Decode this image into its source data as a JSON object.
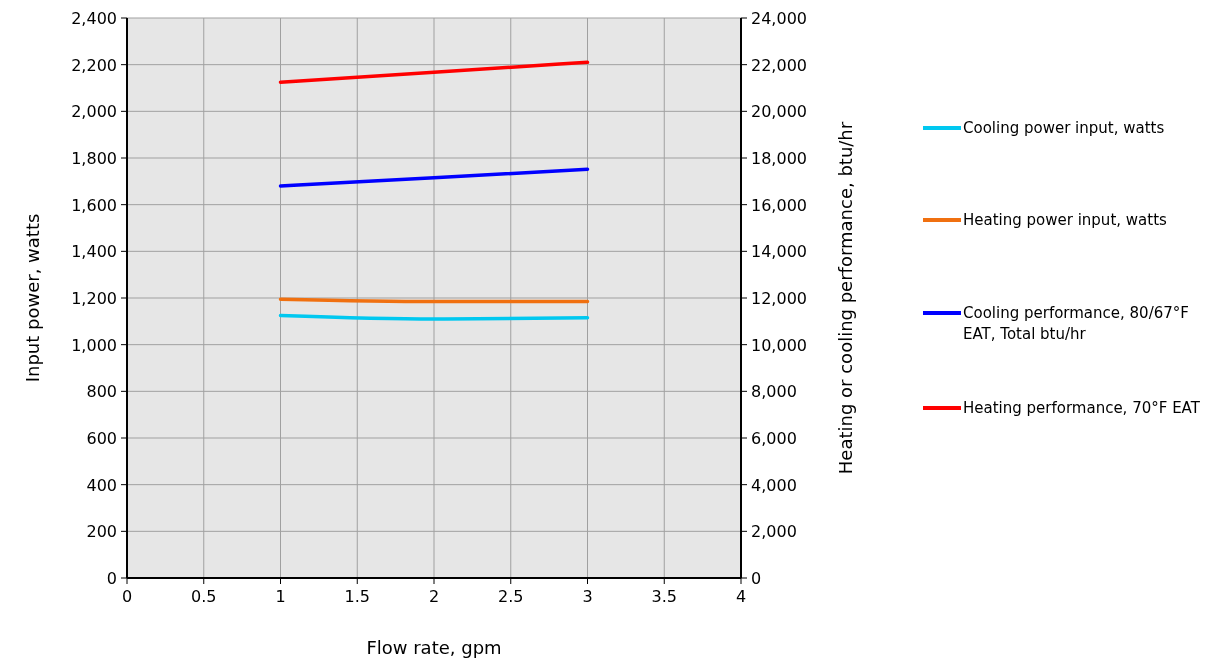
{
  "chart_data": {
    "type": "line",
    "xlabel": "Flow rate, gpm",
    "ylabel": "Input power, watts",
    "y2label": "Heating or cooling performance, btu/hr",
    "xlim": [
      0,
      4
    ],
    "xticks": [
      0,
      0.5,
      1,
      1.5,
      2,
      2.5,
      3,
      3.5,
      4
    ],
    "ylim": [
      0,
      2400
    ],
    "yticks": [
      0,
      200,
      400,
      600,
      800,
      {
        "value": 1000,
        "label": "1,000"
      },
      {
        "value": 1200,
        "label": "1,200"
      },
      {
        "value": 1400,
        "label": "1,400"
      },
      {
        "value": 1600,
        "label": "1,600"
      },
      {
        "value": 1800,
        "label": "1,800"
      },
      {
        "value": 2000,
        "label": "2,000"
      },
      {
        "value": 2200,
        "label": "2,200"
      },
      {
        "value": 2400,
        "label": "2,400"
      }
    ],
    "y2lim": [
      0,
      24000
    ],
    "y2ticks": [
      0,
      {
        "value": 2000,
        "label": "2,000"
      },
      {
        "value": 4000,
        "label": "4,000"
      },
      {
        "value": 6000,
        "label": "6,000"
      },
      {
        "value": 8000,
        "label": "8,000"
      },
      {
        "value": 10000,
        "label": "10,000"
      },
      {
        "value": 12000,
        "label": "12,000"
      },
      {
        "value": 14000,
        "label": "14,000"
      },
      {
        "value": 16000,
        "label": "16,000"
      },
      {
        "value": 18000,
        "label": "18,000"
      },
      {
        "value": 20000,
        "label": "20,000"
      },
      {
        "value": 22000,
        "label": "22,000"
      },
      {
        "value": 24000,
        "label": "24,000"
      }
    ],
    "x": [
      1,
      2,
      3
    ],
    "grid": true,
    "legend": "right",
    "series": [
      {
        "name": "Cooling power input, watts",
        "color": "#00c8f0",
        "values": [
          1125,
          1110,
          1115
        ]
      },
      {
        "name": "Heating power input, watts",
        "color": "#f07010",
        "values": [
          1195,
          1185,
          1185
        ]
      },
      {
        "name": "Cooling performance, 80/67°F EAT, Total btu/hr",
        "color": "#0000ff",
        "axis": "y2",
        "values": [
          16800,
          17150,
          17520
        ]
      },
      {
        "name": "Heating performance, 70°F EAT",
        "color": "#ff0000",
        "axis": "y2",
        "values": [
          21250,
          21680,
          22100
        ]
      }
    ]
  }
}
